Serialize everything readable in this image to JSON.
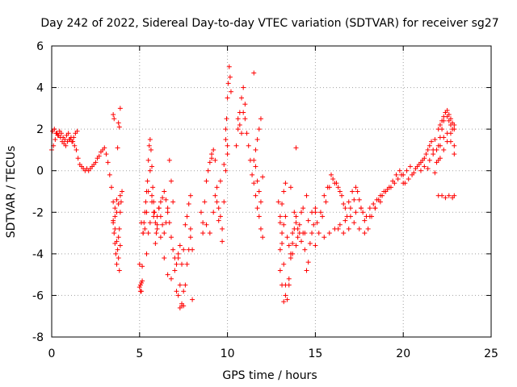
{
  "chart_data": {
    "type": "scatter",
    "title": "Day 242 of 2022, Sidereal Day-to-day VTEC variation (SDTVAR) for receiver sg27",
    "xlabel": "GPS time / hours",
    "ylabel": "SDTVAR / TECUs",
    "xlim": [
      0,
      25
    ],
    "ylim": [
      -8,
      6
    ],
    "xticks": [
      0,
      5,
      10,
      15,
      20,
      25
    ],
    "yticks": [
      -8,
      -6,
      -4,
      -2,
      0,
      2,
      4,
      6
    ],
    "grid": true,
    "marker": "+",
    "series_color": "#ff0000",
    "series": [
      {
        "name": "SDTVAR",
        "x": [
          0.0,
          0.1,
          0.2,
          0.3,
          0.4,
          0.5,
          0.6,
          0.7,
          0.8,
          0.9,
          1.0,
          1.1,
          1.2,
          1.3,
          1.4,
          1.5,
          1.6,
          1.7,
          1.8,
          1.9,
          2.0,
          2.1,
          2.2,
          2.3,
          2.4,
          2.5,
          2.6,
          2.7,
          2.8,
          2.9,
          3.0,
          3.1,
          3.2,
          3.3,
          3.4,
          3.5,
          3.6,
          3.7,
          3.8,
          3.9,
          4.0,
          0.05,
          0.15,
          0.25,
          0.35,
          0.45,
          0.55,
          0.65,
          0.75,
          0.85,
          0.95,
          1.05,
          1.15,
          1.25,
          1.35,
          1.45,
          3.5,
          3.55,
          3.6,
          3.65,
          3.7,
          3.75,
          3.8,
          3.85,
          3.9,
          3.95,
          3.6,
          3.7,
          3.8,
          3.9,
          3.5,
          3.6,
          3.7,
          3.85,
          3.5,
          3.55,
          3.8,
          3.85,
          3.9,
          3.75,
          5.0,
          5.05,
          5.1,
          5.15,
          5.2,
          5.25,
          5.3,
          5.35,
          5.4,
          5.45,
          5.5,
          5.55,
          5.6,
          5.65,
          5.7,
          5.75,
          5.8,
          5.85,
          5.9,
          5.95,
          6.0,
          6.1,
          6.2,
          6.3,
          6.4,
          6.5,
          6.6,
          6.7,
          6.8,
          6.9,
          7.0,
          5.1,
          5.2,
          5.3,
          5.4,
          5.5,
          5.6,
          5.7,
          5.8,
          5.9,
          6.0,
          6.1,
          6.2,
          6.3,
          6.4,
          6.5,
          6.6,
          6.7,
          6.8,
          6.9,
          5.0,
          5.05,
          5.1,
          5.15,
          5.4,
          5.5,
          5.6,
          5.7,
          5.8,
          6.0,
          6.2,
          6.4,
          6.6,
          6.8,
          7.0,
          7.1,
          7.2,
          7.3,
          7.4,
          7.5,
          7.6,
          7.7,
          7.8,
          7.9,
          8.0,
          7.2,
          7.3,
          7.4,
          7.5,
          7.6,
          7.7,
          7.8,
          7.9,
          7.1,
          7.2,
          7.3,
          7.4,
          7.5,
          7.9,
          8.0,
          8.5,
          8.6,
          8.7,
          8.8,
          8.9,
          9.0,
          9.1,
          9.2,
          9.3,
          9.4,
          9.5,
          9.6,
          9.7,
          9.8,
          9.9,
          10.0,
          8.6,
          8.8,
          9.0,
          9.2,
          9.4,
          9.6,
          9.8,
          10.0,
          9.1,
          9.3,
          9.5,
          9.7,
          9.9,
          9.9,
          10.0,
          10.05,
          10.1,
          10.15,
          10.2,
          9.95,
          10.5,
          10.6,
          10.7,
          10.8,
          10.9,
          11.0,
          11.1,
          11.2,
          11.3,
          11.4,
          11.5,
          11.6,
          11.7,
          11.8,
          11.9,
          12.0,
          10.6,
          10.7,
          10.8,
          10.9,
          11.0,
          11.5,
          11.6,
          11.7,
          11.8,
          11.9,
          11.6,
          11.7,
          11.8,
          11.9,
          12.0,
          11.5,
          12.9,
          13.0,
          13.1,
          13.2,
          13.3,
          13.4,
          13.5,
          13.6,
          13.7,
          13.8,
          13.9,
          14.0,
          14.1,
          14.2,
          14.3,
          14.4,
          14.5,
          14.6,
          14.7,
          14.8,
          14.9,
          15.0,
          13.0,
          13.1,
          13.2,
          13.3,
          13.4,
          13.5,
          13.6,
          13.7,
          13.8,
          13.9,
          14.0,
          14.2,
          14.4,
          14.6,
          14.8,
          15.0,
          13.0,
          13.1,
          13.2,
          13.3,
          13.5,
          13.7,
          13.9,
          14.1,
          14.3,
          14.5,
          13.0,
          13.1,
          13.2,
          13.3,
          13.6,
          13.9,
          15.0,
          15.2,
          15.4,
          15.6,
          15.8,
          16.0,
          16.2,
          16.4,
          16.6,
          16.8,
          17.0,
          17.2,
          17.4,
          17.6,
          17.8,
          18.0,
          18.2,
          18.4,
          18.6,
          18.8,
          19.0,
          19.2,
          19.4,
          19.6,
          19.8,
          20.0,
          15.1,
          15.3,
          15.5,
          15.7,
          15.9,
          16.1,
          16.3,
          16.5,
          16.7,
          16.9,
          17.1,
          17.3,
          17.5,
          17.7,
          17.9,
          18.1,
          18.3,
          18.5,
          18.7,
          18.9,
          19.1,
          19.3,
          19.5,
          19.7,
          19.9,
          15.5,
          15.8,
          16.1,
          16.4,
          16.7,
          17.0,
          17.3,
          17.6,
          16.3,
          16.6,
          16.9,
          17.2,
          17.5,
          17.8,
          18.1,
          18.4,
          18.7,
          19.0,
          20.0,
          20.2,
          20.4,
          20.6,
          20.8,
          21.0,
          21.2,
          21.4,
          21.6,
          21.8,
          22.0,
          22.1,
          22.2,
          22.3,
          22.4,
          22.5,
          22.6,
          22.7,
          22.8,
          22.9,
          20.1,
          20.3,
          20.5,
          20.7,
          20.9,
          21.1,
          21.3,
          21.5,
          21.7,
          21.9,
          22.1,
          22.3,
          22.5,
          22.7,
          22.9,
          21.5,
          21.7,
          21.9,
          22.1,
          22.3,
          22.5,
          22.7,
          22.9,
          22.0,
          22.1,
          22.2,
          22.3,
          22.4,
          22.5,
          22.6,
          22.7,
          22.8,
          22.9,
          22.0,
          22.2,
          22.4,
          22.6,
          22.8,
          22.9,
          21.0,
          21.2,
          21.4,
          21.8,
          22.0
        ],
        "y": [
          1.0,
          1.2,
          1.5,
          1.8,
          1.7,
          1.6,
          1.4,
          1.3,
          1.2,
          1.4,
          1.5,
          1.6,
          1.4,
          1.2,
          1.0,
          0.6,
          0.3,
          0.2,
          0.1,
          0.0,
          0.1,
          0.0,
          0.1,
          0.2,
          0.3,
          0.4,
          0.6,
          0.7,
          0.9,
          1.0,
          1.1,
          0.8,
          0.4,
          -0.2,
          -0.8,
          -1.5,
          -2.2,
          -2.0,
          -1.6,
          -1.2,
          -1.0,
          1.9,
          2.0,
          1.8,
          1.7,
          1.9,
          1.8,
          1.6,
          1.5,
          1.7,
          1.8,
          1.5,
          1.4,
          1.6,
          1.8,
          1.9,
          -2.5,
          -3.0,
          -3.5,
          -4.0,
          -4.5,
          -3.8,
          -3.2,
          -2.8,
          -2.0,
          -1.5,
          -2.8,
          -3.4,
          -4.2,
          -3.6,
          -2.4,
          -1.8,
          -1.4,
          -4.8,
          2.7,
          2.5,
          2.3,
          2.1,
          3.0,
          1.1,
          -4.5,
          -5.5,
          -5.8,
          -5.3,
          -3.0,
          -2.5,
          -2.0,
          -1.5,
          -1.0,
          -0.5,
          0.5,
          1.2,
          1.5,
          1.0,
          0.2,
          -0.8,
          -1.5,
          -2.0,
          -2.5,
          -3.0,
          -2.2,
          -1.8,
          -1.5,
          -1.3,
          -1.0,
          -1.4,
          -1.8,
          -2.5,
          -3.2,
          -3.8,
          -4.2,
          -2.5,
          -3.0,
          -2.8,
          -2.0,
          -1.0,
          0.0,
          -1.2,
          -2.2,
          -3.5,
          -2.8,
          -1.8,
          -2.2,
          -2.6,
          -3.0,
          -2.5,
          -2.0,
          0.5,
          -0.5,
          -1.5,
          -5.6,
          -5.8,
          -5.4,
          -4.6,
          -4.0,
          -3.0,
          -2.5,
          -1.5,
          -2.0,
          -2.6,
          -3.2,
          -4.2,
          -5.0,
          -5.2,
          -4.8,
          -4.5,
          -4.0,
          -5.5,
          -6.5,
          -6.5,
          -5.5,
          -4.5,
          -3.8,
          -3.2,
          -3.8,
          -4.2,
          -3.6,
          -4.5,
          -3.8,
          -2.6,
          -2.2,
          -1.6,
          -1.2,
          -5.8,
          -6.0,
          -6.6,
          -6.4,
          -5.8,
          -2.8,
          -6.2,
          -2.0,
          -2.5,
          -1.5,
          -0.5,
          0.0,
          0.4,
          0.8,
          1.0,
          0.5,
          -0.8,
          -1.8,
          -2.2,
          -2.8,
          -1.5,
          0.0,
          0.8,
          -3.0,
          -2.6,
          -3.0,
          -2.0,
          -1.5,
          -0.5,
          0.3,
          1.2,
          0.6,
          -1.2,
          -2.4,
          -3.4,
          1.5,
          2.0,
          3.5,
          4.2,
          5.0,
          4.5,
          3.8,
          2.5,
          1.2,
          2.0,
          2.8,
          3.5,
          4.0,
          2.5,
          1.8,
          1.2,
          0.5,
          -0.2,
          -0.6,
          -1.2,
          -1.8,
          -2.2,
          -2.8,
          -3.2,
          2.5,
          2.2,
          1.8,
          2.8,
          3.2,
          0.5,
          1.0,
          1.5,
          2.0,
          2.5,
          0.2,
          -0.5,
          -1.0,
          -1.5,
          -0.3,
          4.7,
          -1.5,
          -2.5,
          -3.5,
          -4.5,
          -5.5,
          -6.2,
          -5.5,
          -4.0,
          -3.0,
          -2.0,
          -2.5,
          -3.2,
          -2.6,
          -2.0,
          -3.0,
          -3.8,
          -4.8,
          -4.4,
          -3.5,
          -3.0,
          -2.6,
          -2.0,
          -3.8,
          -3.0,
          -2.6,
          -2.2,
          -3.2,
          -3.6,
          -4.2,
          -3.5,
          -2.8,
          -2.2,
          -2.8,
          -3.4,
          -3.0,
          -2.4,
          -2.0,
          -1.8,
          -4.8,
          -5.5,
          -6.3,
          -6.0,
          -5.2,
          -4.0,
          -3.6,
          -3.0,
          -1.8,
          -1.2,
          -2.2,
          -1.6,
          -1.0,
          -0.6,
          -0.8,
          1.1,
          -3.6,
          -3.0,
          -2.2,
          -1.5,
          -0.8,
          -0.4,
          -0.6,
          -1.0,
          -1.6,
          -2.2,
          -1.8,
          -1.4,
          -1.0,
          -1.8,
          -2.4,
          -2.8,
          -2.2,
          -1.8,
          -1.4,
          -1.2,
          -1.0,
          -0.8,
          -0.5,
          -0.2,
          0.0,
          -0.6,
          -2.5,
          -2.0,
          -1.2,
          -0.8,
          -0.2,
          -0.6,
          -0.8,
          -1.2,
          -1.8,
          -1.5,
          -1.0,
          -0.8,
          -1.4,
          -2.0,
          -2.2,
          -1.8,
          -1.6,
          -1.4,
          -1.2,
          -1.0,
          -0.9,
          -0.8,
          -0.6,
          -0.4,
          -0.2,
          -3.2,
          -3.0,
          -2.8,
          -2.6,
          -2.4,
          -2.2,
          -2.0,
          -1.8,
          -2.8,
          -3.0,
          -2.8,
          -2.5,
          -2.8,
          -3.0,
          -2.2,
          -1.8,
          -1.5,
          -1.0,
          -0.2,
          0.0,
          0.2,
          -0.1,
          0.2,
          0.4,
          0.6,
          1.0,
          1.4,
          1.5,
          1.2,
          1.6,
          2.0,
          2.4,
          2.8,
          2.6,
          2.4,
          2.2,
          2.0,
          2.2,
          -0.6,
          -0.4,
          -0.2,
          0.1,
          0.3,
          0.5,
          0.8,
          1.2,
          1.0,
          0.4,
          0.6,
          1.0,
          1.4,
          1.8,
          1.2,
          0.5,
          0.8,
          1.0,
          1.2,
          1.6,
          1.8,
          1.4,
          0.8,
          2.0,
          2.2,
          2.4,
          2.6,
          2.8,
          2.9,
          2.7,
          2.5,
          2.3,
          2.0,
          -1.2,
          -1.2,
          -1.3,
          -1.2,
          -1.3,
          -1.2,
          0.0,
          0.2,
          0.1,
          -0.1,
          0.5
        ]
      }
    ]
  }
}
